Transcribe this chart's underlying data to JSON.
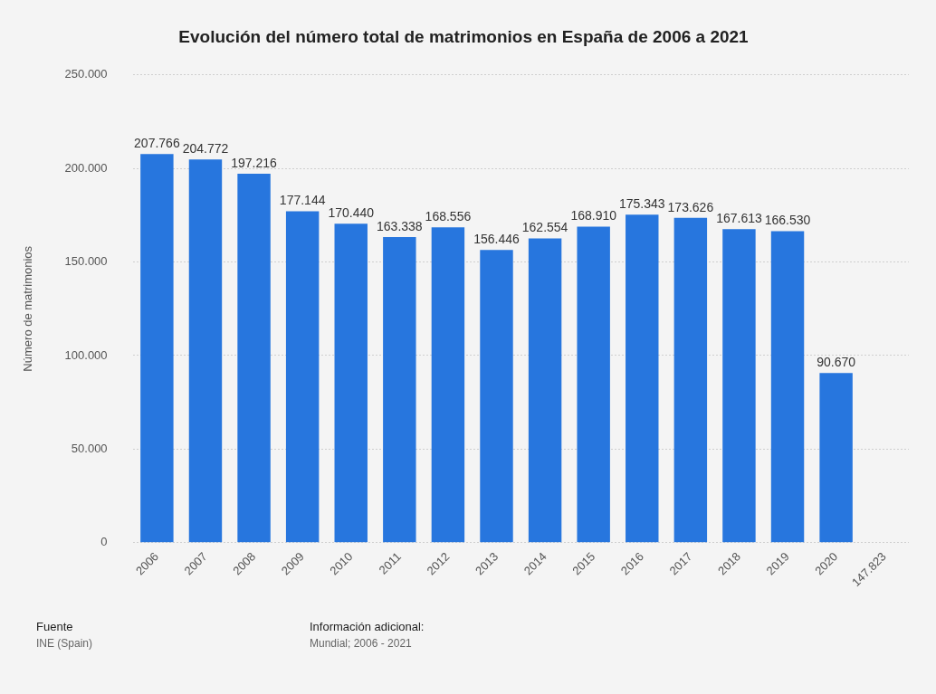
{
  "chart_data": {
    "type": "bar",
    "title": "Evolución del número total de matrimonios en España de 2006 a 2021",
    "ylabel": "Número de matrimonios",
    "categories": [
      "2006",
      "2007",
      "2008",
      "2009",
      "2010",
      "2011",
      "2012",
      "2013",
      "2014",
      "2015",
      "2016",
      "2017",
      "2018",
      "2019",
      "2020",
      "147.823"
    ],
    "values": [
      207766,
      204772,
      197216,
      177144,
      170440,
      163338,
      168556,
      156446,
      162554,
      168910,
      175343,
      173626,
      167613,
      166530,
      90670,
      null
    ],
    "value_labels": [
      "207.766",
      "204.772",
      "197.216",
      "177.144",
      "170.440",
      "163.338",
      "168.556",
      "156.446",
      "162.554",
      "168.910",
      "175.343",
      "173.626",
      "167.613",
      "166.530",
      "90.670",
      null
    ],
    "color": "#2776de",
    "ylim": [
      0,
      250000
    ],
    "yticks": [
      0,
      {
        "value": 50000,
        "label": "50.000"
      },
      {
        "value": 100000,
        "label": "100.000"
      },
      {
        "value": 150000,
        "label": "150.000"
      },
      {
        "value": 200000,
        "label": "200.000"
      },
      {
        "value": 250000,
        "label": "250.000"
      }
    ],
    "grid": "y",
    "legend": false,
    "annotations": [
      "Fuente",
      "INE (Spain)",
      "Información adicional:",
      "Mundial; 2006 - 2021"
    ]
  }
}
